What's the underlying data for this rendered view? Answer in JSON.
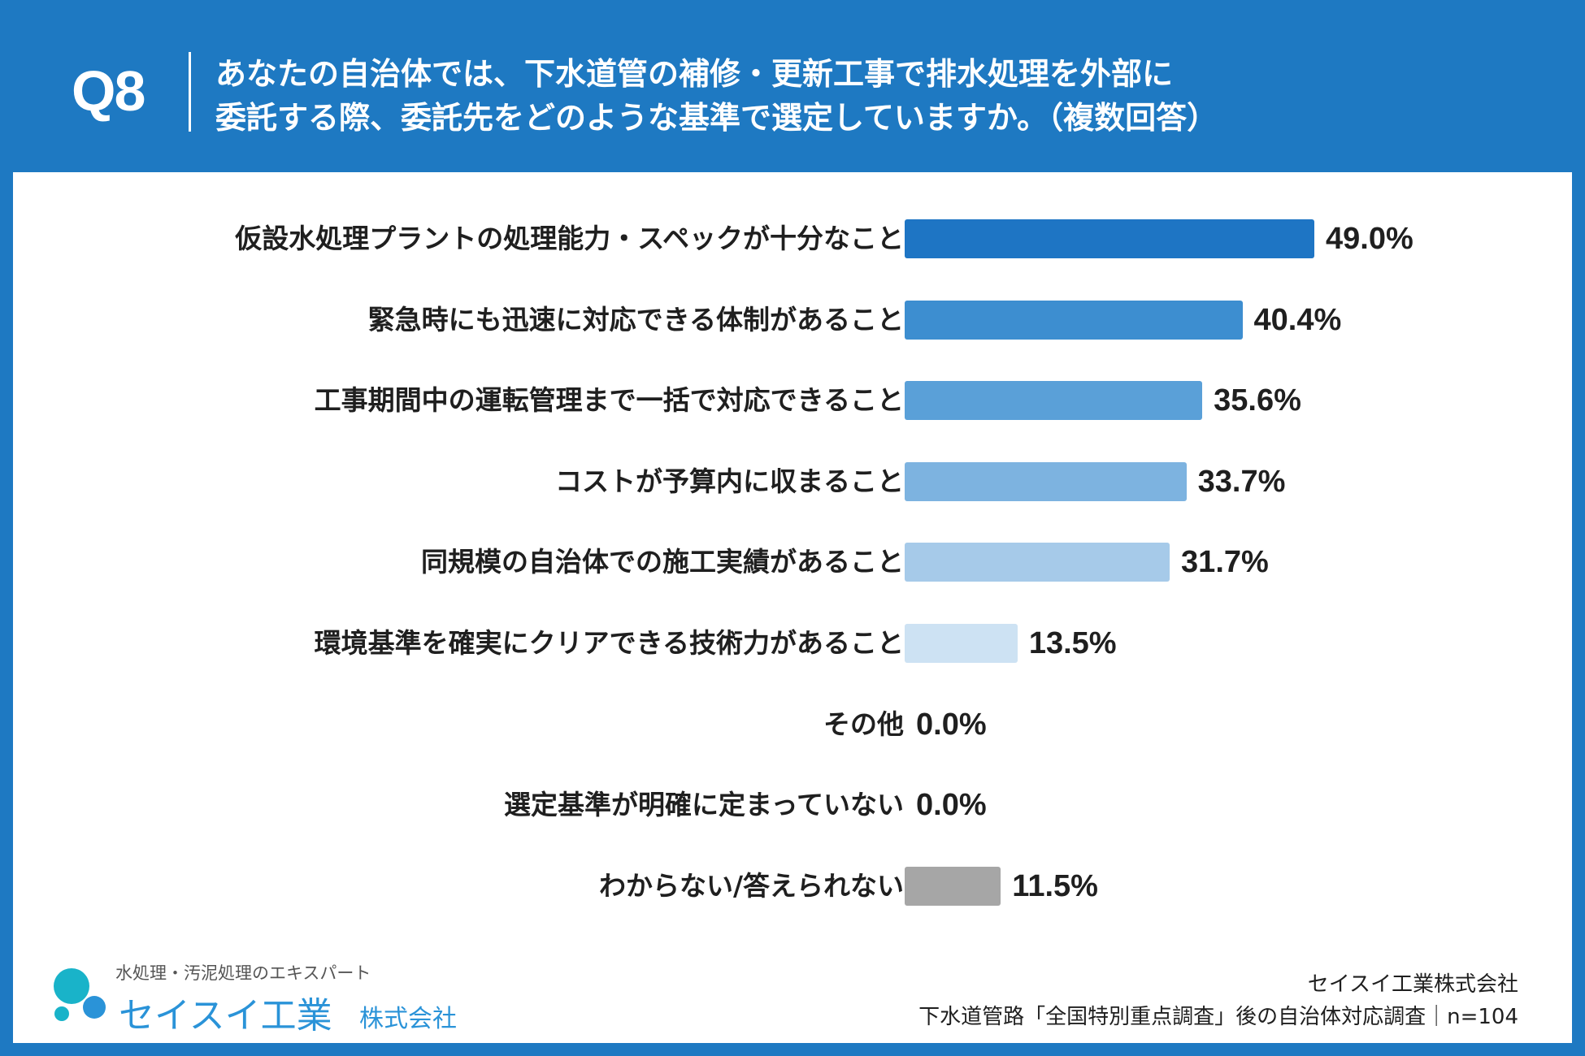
{
  "header": {
    "qnum": "Q8",
    "question_line1": "あなたの自治体では、下水道管の補修・更新工事で排水処理を外部に",
    "question_line2": "委託する際、委託先をどのような基準で選定していますか。（複数回答）"
  },
  "chart_data": {
    "type": "bar",
    "orientation": "horizontal",
    "title": "あなたの自治体では、下水道管の補修・更新工事で排水処理を外部に委託する際、委託先をどのような基準で選定していますか。（複数回答）",
    "unit": "%",
    "categories": [
      "仮設水処理プラントの処理能力・スペックが十分なこと",
      "緊急時にも迅速に対応できる体制があること",
      "工事期間中の運転管理まで一括で対応できること",
      "コストが予算内に収まること",
      "同規模の自治体での施工実績があること",
      "環境基準を確実にクリアできる技術力があること",
      "その他",
      "選定基準が明確に定まっていない",
      "わからない/答えられない"
    ],
    "values": [
      49.0,
      40.4,
      35.6,
      33.7,
      31.7,
      13.5,
      0.0,
      0.0,
      11.5
    ],
    "value_labels": [
      "49.0%",
      "40.4%",
      "35.6%",
      "33.7%",
      "31.7%",
      "13.5%",
      "0.0%",
      "0.0%",
      "11.5%"
    ],
    "colors": [
      "#1e75c4",
      "#3d8ed0",
      "#5aa0d8",
      "#7db3e0",
      "#a6cae9",
      "#cde2f3",
      "#cde2f3",
      "#cde2f3",
      "#a6a6a6"
    ],
    "xlim": [
      0,
      60
    ],
    "grid": false,
    "legend": "none"
  },
  "footer": {
    "logo_tagline": "水処理・汚泥処理のエキスパート",
    "logo_name": "セイスイ工業",
    "logo_suffix": "株式会社",
    "source_company": "セイスイ工業株式会社",
    "source_note": "下水道管路「全国特別重点調査」後の自治体対応調査｜n=104"
  },
  "colors": {
    "frame": "#1e79c2",
    "logo_blue": "#2a93d8",
    "logo_teal": "#19b3c9"
  }
}
